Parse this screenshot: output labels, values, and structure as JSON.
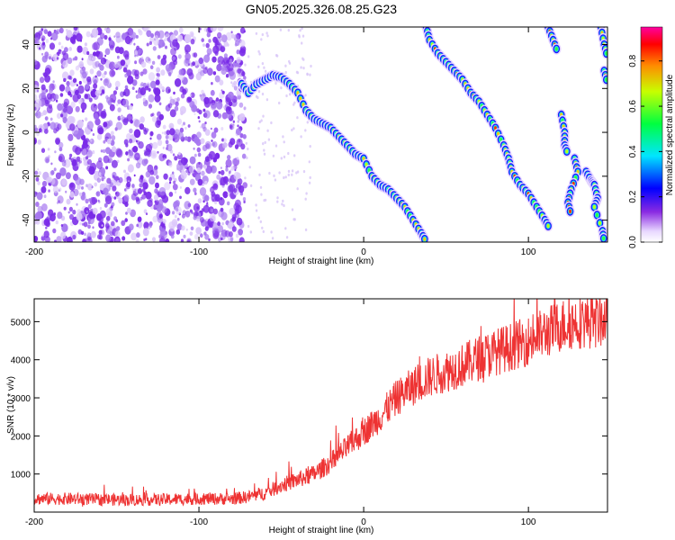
{
  "title": "GN05.2025.326.08.25.G23",
  "chart_data": [
    {
      "type": "heatmap",
      "xlabel": "Height of straight line (km)",
      "ylabel": "Frequency (Hz)",
      "xlim": [
        -200,
        148
      ],
      "ylim": [
        -50,
        48
      ],
      "xticks": [
        -200,
        -100,
        0,
        100
      ],
      "yticks": [
        -40,
        -20,
        0,
        20,
        40
      ],
      "colorbar": {
        "label": "Normalized spectral amplitude",
        "range": [
          0,
          0.95
        ],
        "ticks": [
          0,
          0.2,
          0.4,
          0.6,
          0.8
        ],
        "tick_labels": [
          "0.0",
          "0.2",
          "0.4",
          "0.6",
          "0.8"
        ]
      },
      "noise_region": {
        "x_from": -200,
        "x_to": -72,
        "level": 0.1
      },
      "traces": [
        {
          "points": [
            [
              -74,
              22
            ],
            [
              -70,
              18
            ],
            [
              -65,
              22
            ],
            [
              -60,
              24
            ],
            [
              -55,
              26
            ],
            [
              -50,
              25
            ],
            [
              -45,
              22
            ],
            [
              -40,
              18
            ],
            [
              -35,
              10
            ],
            [
              -30,
              6
            ],
            [
              -25,
              4
            ],
            [
              -20,
              2
            ],
            [
              -15,
              -2
            ],
            [
              -10,
              -6
            ],
            [
              -5,
              -10
            ],
            [
              0,
              -12
            ],
            [
              5,
              -20
            ],
            [
              10,
              -24
            ],
            [
              15,
              -26
            ],
            [
              20,
              -30
            ],
            [
              25,
              -34
            ],
            [
              30,
              -40
            ],
            [
              35,
              -46
            ],
            [
              38,
              -50
            ]
          ]
        },
        {
          "points": [
            [
              38,
              48
            ],
            [
              40,
              42
            ],
            [
              45,
              36
            ],
            [
              50,
              32
            ],
            [
              55,
              28
            ],
            [
              60,
              24
            ],
            [
              65,
              18
            ],
            [
              70,
              14
            ],
            [
              75,
              8
            ],
            [
              80,
              2
            ],
            [
              85,
              -6
            ],
            [
              88,
              -12
            ],
            [
              90,
              -18
            ],
            [
              95,
              -24
            ],
            [
              100,
              -28
            ],
            [
              105,
              -34
            ],
            [
              110,
              -40
            ],
            [
              113,
              -44
            ]
          ]
        },
        {
          "points": [
            [
              112,
              48
            ],
            [
              115,
              42
            ],
            [
              118,
              36
            ]
          ]
        },
        {
          "points": [
            [
              120,
              8
            ],
            [
              122,
              0
            ],
            [
              122,
              -6
            ],
            [
              124,
              -10
            ]
          ]
        },
        {
          "points": [
            [
              128,
              -12
            ],
            [
              130,
              -18
            ],
            [
              126,
              -26
            ],
            [
              124,
              -32
            ],
            [
              126,
              -38
            ]
          ]
        },
        {
          "points": [
            [
              135,
              -18
            ],
            [
              138,
              -22
            ],
            [
              140,
              -24
            ],
            [
              142,
              -30
            ],
            [
              140,
              -34
            ],
            [
              145,
              -45
            ],
            [
              146,
              -50
            ]
          ]
        },
        {
          "points": [
            [
              144,
              48
            ],
            [
              146,
              40
            ],
            [
              148,
              34
            ]
          ]
        },
        {
          "points": [
            [
              146,
              28
            ],
            [
              148,
              22
            ]
          ]
        }
      ]
    },
    {
      "type": "line",
      "xlabel": "Height of straight line (km)",
      "ylabel": "SNR (10 * v/v)",
      "xlim": [
        -200,
        148
      ],
      "ylim": [
        0,
        5600
      ],
      "xticks": [
        -200,
        -100,
        0,
        100
      ],
      "yticks": [
        1000,
        2000,
        3000,
        4000,
        5000
      ],
      "color": "#ee3333",
      "series": [
        {
          "x": [
            -200,
            -180,
            -160,
            -140,
            -120,
            -100,
            -80,
            -70,
            -60,
            -50,
            -40,
            -30,
            -20,
            -10,
            0,
            10,
            20,
            30,
            40,
            50,
            60,
            70,
            80,
            90,
            100,
            110,
            120,
            130,
            140,
            148
          ],
          "y": [
            350,
            350,
            330,
            320,
            330,
            350,
            350,
            400,
            500,
            700,
            850,
            1000,
            1300,
            1700,
            2100,
            2500,
            3000,
            3300,
            3550,
            3700,
            3850,
            4050,
            4200,
            4350,
            4500,
            4700,
            4900,
            5000,
            5000,
            5100
          ]
        }
      ]
    }
  ]
}
